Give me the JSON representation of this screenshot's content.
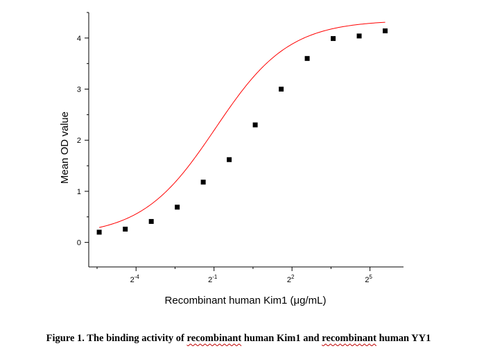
{
  "chart_data": {
    "type": "scatter",
    "xlabel": "Recombinant human Kim1 (μg/mL)",
    "ylabel": "Mean OD value",
    "x_scale": "log2",
    "x_tick_labels": [
      {
        "base": "2",
        "exp": "-4"
      },
      {
        "base": "2",
        "exp": "-1"
      },
      {
        "base": "2",
        "exp": "2"
      },
      {
        "base": "2",
        "exp": "5"
      }
    ],
    "x_tick_exponents": [
      -4,
      -1,
      2,
      5
    ],
    "y_ticks": [
      0,
      1,
      2,
      3,
      4
    ],
    "ylim": [
      -0.48,
      4.5
    ],
    "xlim_log2": [
      -5.82,
      6.29
    ],
    "series": [
      {
        "x": [
          0.0234,
          0.0469,
          0.0938,
          0.1875,
          0.375,
          0.75,
          1.5,
          3,
          6,
          12,
          24,
          48
        ],
        "y": [
          0.2,
          0.26,
          0.41,
          0.69,
          1.18,
          1.62,
          2.3,
          3.0,
          3.6,
          3.99,
          4.04,
          4.14
        ],
        "color": "#000000"
      }
    ],
    "fit_curve": {
      "type": "4PL",
      "color": "#ff0000",
      "x_range": [
        0.0234,
        48
      ]
    },
    "grid": false
  },
  "caption": {
    "prefix": "Figure 1. The binding activity of ",
    "word1": "recombinant",
    "middle": " human Kim1 and ",
    "word2": "recombinant",
    "suffix": " human YY1"
  }
}
